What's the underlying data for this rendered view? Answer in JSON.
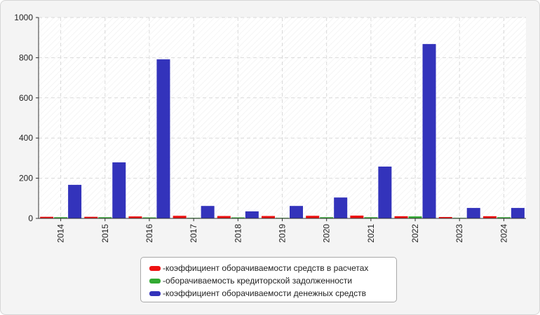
{
  "chart_data": {
    "type": "bar",
    "categories": [
      "2014",
      "2015",
      "2016",
      "2017",
      "2018",
      "2019",
      "2020",
      "2021",
      "2022",
      "2023",
      "2024"
    ],
    "series": [
      {
        "name": "коэффициент оборачиваемости средств в расчетах",
        "color": "#ee1111",
        "values": [
          8,
          8,
          10,
          13,
          12,
          12,
          13,
          14,
          11,
          7,
          11
        ]
      },
      {
        "name": "оборачиваемость кредиторской задолженности",
        "color": "#33aa33",
        "values": [
          6,
          6,
          5,
          3,
          5,
          3,
          6,
          6,
          10,
          3,
          6
        ]
      },
      {
        "name": "коэффициент оборачиваемости денежных средств",
        "color": "#3333bb",
        "values": [
          167,
          279,
          792,
          62,
          35,
          62,
          104,
          258,
          868,
          52,
          52
        ]
      }
    ],
    "y_ticks": [
      "0",
      "200",
      "400",
      "600",
      "800",
      "1000"
    ],
    "ylim": [
      0,
      1000
    ],
    "grid": true,
    "legend_position": "bottom-center"
  }
}
